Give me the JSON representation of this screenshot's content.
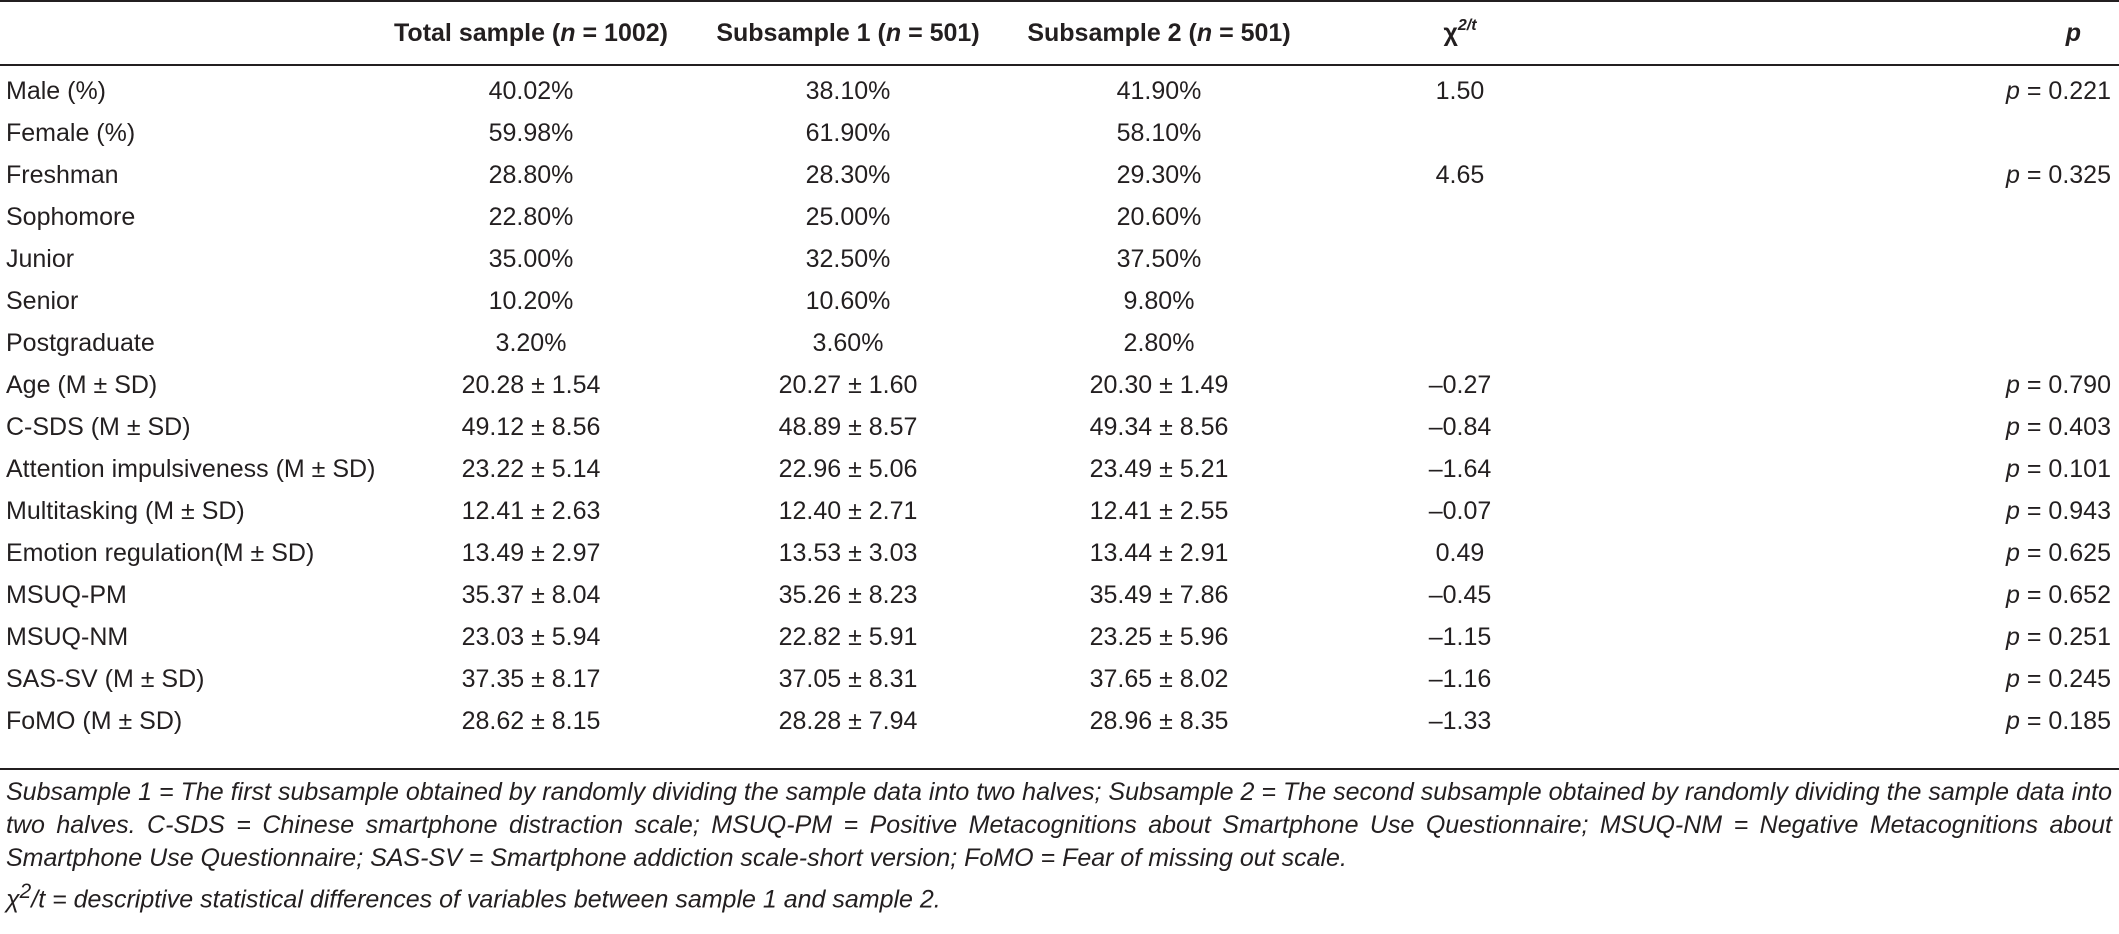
{
  "table": {
    "headers": {
      "blank": "",
      "total_prefix": "Total sample (",
      "total_n": "n",
      "total_suffix": " = 1002)",
      "sub1_prefix": "Subsample 1 (",
      "sub1_n": "n",
      "sub1_suffix": " = 501)",
      "sub2_prefix": "Subsample 2 (",
      "sub2_n": "n",
      "sub2_suffix": " = 501)",
      "chi_base": "χ",
      "chi_sup": "2/t",
      "p": "p"
    },
    "rows": [
      {
        "label": "Male (%)",
        "total": "40.02%",
        "sub1": "38.10%",
        "sub2": "41.90%",
        "stat": "1.50",
        "p_letter": "p",
        "p_rest": " = 0.221"
      },
      {
        "label": "Female (%)",
        "total": "59.98%",
        "sub1": "61.90%",
        "sub2": "58.10%",
        "stat": "",
        "p_letter": "",
        "p_rest": ""
      },
      {
        "label": "Freshman",
        "total": "28.80%",
        "sub1": "28.30%",
        "sub2": "29.30%",
        "stat": "4.65",
        "p_letter": "p",
        "p_rest": " = 0.325"
      },
      {
        "label": "Sophomore",
        "total": "22.80%",
        "sub1": "25.00%",
        "sub2": "20.60%",
        "stat": "",
        "p_letter": "",
        "p_rest": ""
      },
      {
        "label": "Junior",
        "total": "35.00%",
        "sub1": "32.50%",
        "sub2": "37.50%",
        "stat": "",
        "p_letter": "",
        "p_rest": ""
      },
      {
        "label": "Senior",
        "total": "10.20%",
        "sub1": "10.60%",
        "sub2": "9.80%",
        "stat": "",
        "p_letter": "",
        "p_rest": ""
      },
      {
        "label": "Postgraduate",
        "total": "3.20%",
        "sub1": "3.60%",
        "sub2": "2.80%",
        "stat": "",
        "p_letter": "",
        "p_rest": ""
      },
      {
        "label": "Age (M ± SD)",
        "total": "20.28 ± 1.54",
        "sub1": "20.27 ± 1.60",
        "sub2": "20.30 ± 1.49",
        "stat": "–0.27",
        "p_letter": "p",
        "p_rest": " = 0.790"
      },
      {
        "label": "C-SDS (M ± SD)",
        "total": "49.12 ± 8.56",
        "sub1": "48.89 ± 8.57",
        "sub2": "49.34 ± 8.56",
        "stat": "–0.84",
        "p_letter": "p",
        "p_rest": " = 0.403"
      },
      {
        "label": "Attention impulsiveness (M ± SD)",
        "total": "23.22 ± 5.14",
        "sub1": "22.96 ± 5.06",
        "sub2": "23.49 ± 5.21",
        "stat": "–1.64",
        "p_letter": "p",
        "p_rest": " = 0.101"
      },
      {
        "label": "Multitasking (M ± SD)",
        "total": "12.41 ± 2.63",
        "sub1": "12.40 ± 2.71",
        "sub2": "12.41 ± 2.55",
        "stat": "–0.07",
        "p_letter": "p",
        "p_rest": " = 0.943"
      },
      {
        "label": "Emotion regulation(M ± SD)",
        "total": "13.49 ± 2.97",
        "sub1": "13.53 ± 3.03",
        "sub2": "13.44 ± 2.91",
        "stat": "0.49",
        "p_letter": "p",
        "p_rest": " = 0.625"
      },
      {
        "label": "MSUQ-PM",
        "total": "35.37 ± 8.04",
        "sub1": "35.26 ± 8.23",
        "sub2": "35.49 ± 7.86",
        "stat": "–0.45",
        "p_letter": "p",
        "p_rest": " = 0.652"
      },
      {
        "label": "MSUQ-NM",
        "total": "23.03 ± 5.94",
        "sub1": "22.82 ± 5.91",
        "sub2": "23.25 ± 5.96",
        "stat": "–1.15",
        "p_letter": "p",
        "p_rest": " = 0.251"
      },
      {
        "label": "SAS-SV (M ± SD)",
        "total": "37.35 ± 8.17",
        "sub1": "37.05 ± 8.31",
        "sub2": "37.65 ± 8.02",
        "stat": "–1.16",
        "p_letter": "p",
        "p_rest": " = 0.245"
      },
      {
        "label": "FoMO (M ± SD)",
        "total": "28.62 ± 8.15",
        "sub1": "28.28 ± 7.94",
        "sub2": "28.96 ± 8.35",
        "stat": "–1.33",
        "p_letter": "p",
        "p_rest": " = 0.185"
      }
    ]
  },
  "footnote": {
    "line1": "Subsample 1 = The first subsample obtained by randomly dividing the sample data into two halves; Subsample 2 = The second subsample obtained by randomly dividing the sample data into two halves. C-SDS = Chinese smartphone distraction scale; MSUQ-PM = Positive Metacognitions about Smartphone Use Questionnaire; MSUQ-NM = Negative Metacognitions about Smartphone Use Questionnaire; SAS-SV = Smartphone addiction scale-short version; FoMO = Fear of missing out scale.",
    "chi_base": "χ",
    "chi_sup": "2",
    "line2": "/t = descriptive statistical differences of variables between sample 1 and sample 2."
  }
}
